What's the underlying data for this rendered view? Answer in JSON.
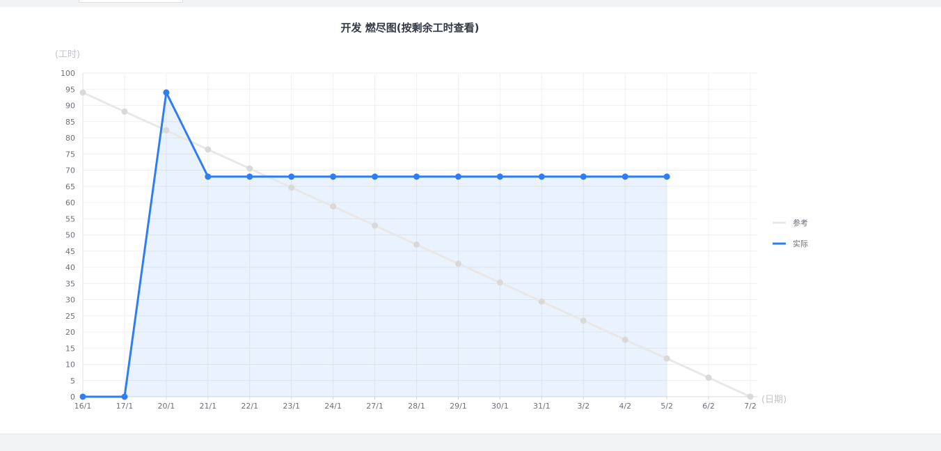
{
  "chart_data": {
    "type": "line",
    "title": "开发 燃尽图(按剩余工时查看)",
    "ylabel": "(工时)",
    "xlabel": "(日期)",
    "ylim": [
      0,
      100
    ],
    "yticks": [
      0,
      5,
      10,
      15,
      20,
      25,
      30,
      35,
      40,
      45,
      50,
      55,
      60,
      65,
      70,
      75,
      80,
      85,
      90,
      95,
      100
    ],
    "categories": [
      "16/1",
      "17/1",
      "20/1",
      "21/1",
      "22/1",
      "23/1",
      "24/1",
      "27/1",
      "28/1",
      "29/1",
      "30/1",
      "31/1",
      "3/2",
      "4/2",
      "5/2",
      "6/2",
      "7/2"
    ],
    "grid": true,
    "legend_position": "right",
    "series": [
      {
        "name": "参考",
        "color": "#e8e8e8",
        "values": [
          94,
          88.1,
          82.3,
          76.4,
          70.5,
          64.6,
          58.8,
          52.9,
          47.0,
          41.1,
          35.3,
          29.4,
          23.5,
          17.6,
          11.8,
          5.9,
          0
        ]
      },
      {
        "name": "实际",
        "color": "#2f7df6",
        "area": true,
        "values": [
          0,
          0,
          94,
          68,
          68,
          68,
          68,
          68,
          68,
          68,
          68,
          68,
          68,
          68,
          68,
          null,
          null
        ]
      }
    ]
  }
}
